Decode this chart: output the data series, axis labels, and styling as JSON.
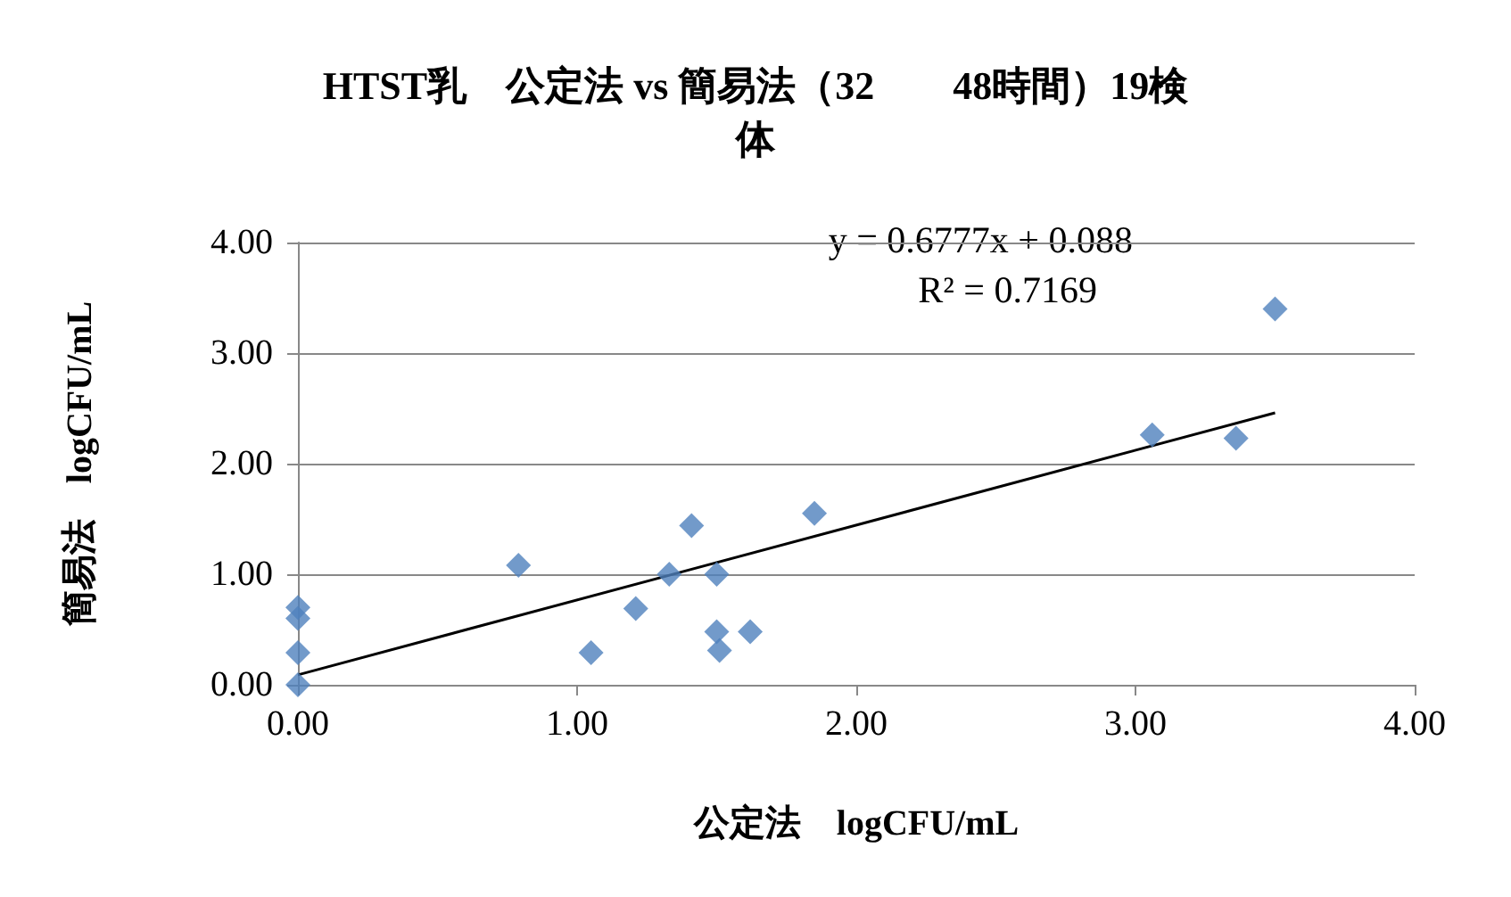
{
  "chart_data": {
    "type": "scatter",
    "title": "HTST乳　公定法 vs 簡易法（32　　48時間）19検体",
    "xlabel": "公定法　logCFU/mL",
    "ylabel": "簡易法　logCFU/mL",
    "annotations": [
      "y = 0.6777x + 0.088",
      "R² = 0.7169"
    ],
    "series": [
      {
        "color": "#4f81bd",
        "marker": "diamond",
        "x": [
          0,
          0,
          0,
          0,
          0.79,
          1.05,
          1.21,
          1.33,
          1.41,
          1.5,
          1.5,
          1.51,
          1.62,
          1.85,
          3.06,
          3.36,
          3.5
        ],
        "values": [
          0,
          0.29,
          0.6,
          0.7,
          1.08,
          0.29,
          0.69,
          1.0,
          1.44,
          1.0,
          0.48,
          0.31,
          0.48,
          1.55,
          2.26,
          2.23,
          3.4
        ]
      },
      {
        "type": "line",
        "color": "#000000",
        "marker": "none",
        "line_style": "solid",
        "x": [
          0,
          3.5
        ],
        "values": [
          0.09,
          2.46
        ]
      }
    ],
    "xlim": [
      0,
      4
    ],
    "ylim": [
      0,
      4
    ],
    "xticks": [
      {
        "value": 0,
        "label": "0.00"
      },
      {
        "value": 1,
        "label": "1.00"
      },
      {
        "value": 2,
        "label": "2.00"
      },
      {
        "value": 3,
        "label": "3.00"
      },
      {
        "value": 4,
        "label": "4.00"
      }
    ],
    "yticks": [
      {
        "value": 0,
        "label": "0.00"
      },
      {
        "value": 1,
        "label": "1.00"
      },
      {
        "value": 2,
        "label": "2.00"
      },
      {
        "value": 3,
        "label": "3.00"
      },
      {
        "value": 4,
        "label": "4.00"
      }
    ],
    "grid": "y"
  }
}
